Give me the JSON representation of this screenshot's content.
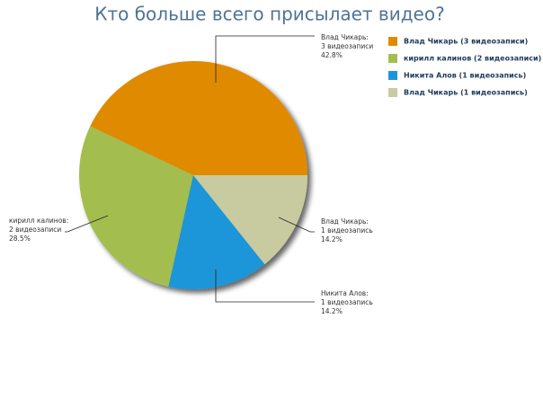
{
  "chart_data": {
    "type": "pie",
    "title": "Кто больше всего присылает видео?",
    "categories": [
      "Влад Чикарь (3 видеозаписи)",
      "кирилл калинов (2 видеозаписи)",
      "Никита Алов (1 видеозапись)",
      "Влад Чикарь (1 видеозапись)"
    ],
    "callout_names": [
      "Влад Чикарь:",
      "кирилл калинов:",
      "Никита Алов:",
      "Влад Чикарь:"
    ],
    "callout_counts": [
      "3 видеозаписи",
      "2 видеозаписи",
      "1 видеозапись",
      "1 видеозапись"
    ],
    "values": [
      42.8,
      28.5,
      14.2,
      14.2
    ],
    "value_labels": [
      "42.8%",
      "28.5%",
      "14.2%",
      "14.2%"
    ],
    "colors": [
      "#e08a00",
      "#a4bd4f",
      "#1e96d8",
      "#c8cb9f"
    ]
  }
}
